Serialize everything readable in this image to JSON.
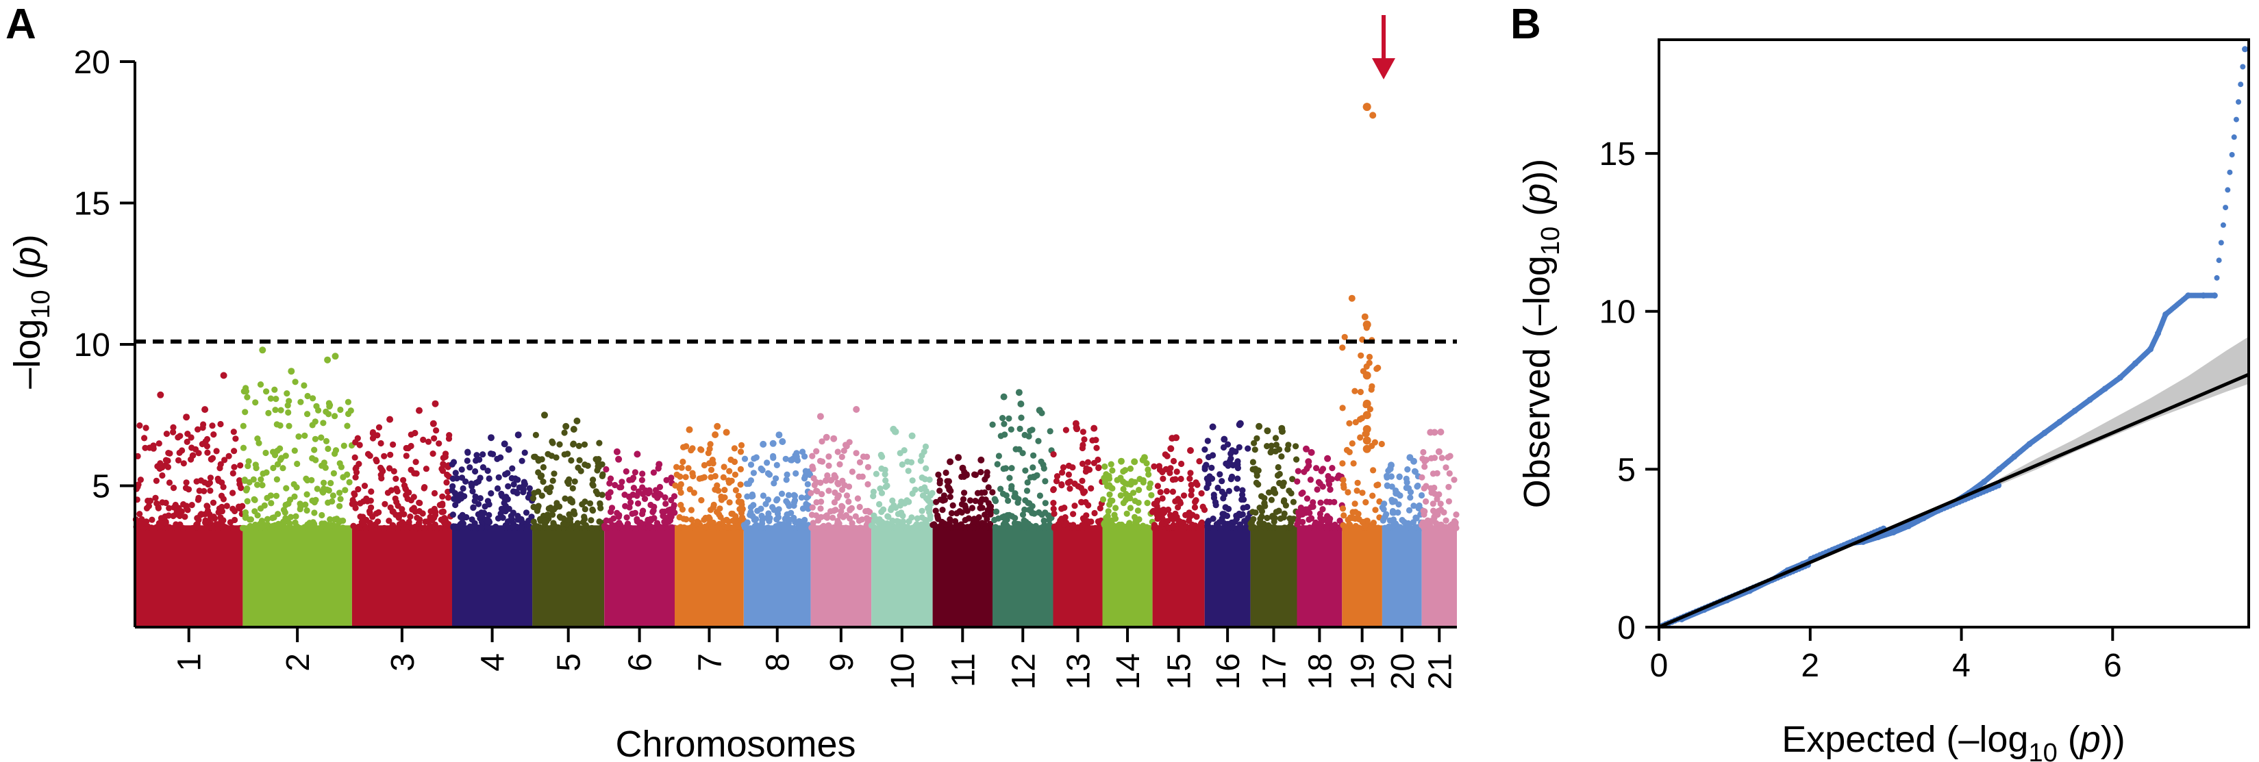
{
  "figure": {
    "panel_a_label": "A",
    "panel_b_label": "B"
  },
  "chart_data": [
    {
      "panel": "A",
      "type": "scatter",
      "subtype": "manhattan",
      "xlabel": "Chromosomes",
      "ylabel_pre": "–log",
      "ylabel_sub": "10",
      "ylabel_post": " (",
      "ylabel_var": "p",
      "ylabel_end": ")",
      "ylim": [
        0,
        20
      ],
      "yticks": [
        5,
        10,
        15,
        20
      ],
      "threshold": 10.1,
      "threshold_style": "dashed",
      "grid": false,
      "chromosomes": [
        {
          "label": "1",
          "size": 1.53,
          "color": "#b3122a",
          "peak": 8.9,
          "high": 7.2
        },
        {
          "label": "2",
          "size": 1.55,
          "color": "#86b832",
          "peak": 9.8,
          "high": 8.8
        },
        {
          "label": "3",
          "size": 1.42,
          "color": "#b3122a",
          "peak": 7.9,
          "high": 7.1
        },
        {
          "label": "4",
          "size": 1.14,
          "color": "#2b1a6e",
          "peak": 6.8,
          "high": 6.2
        },
        {
          "label": "5",
          "size": 1.02,
          "color": "#4b5116",
          "peak": 7.5,
          "high": 6.9
        },
        {
          "label": "6",
          "size": 1.0,
          "color": "#ad1459",
          "peak": 6.2,
          "high": 5.7
        },
        {
          "label": "7",
          "size": 0.98,
          "color": "#e07526",
          "peak": 7.1,
          "high": 6.5
        },
        {
          "label": "8",
          "size": 0.95,
          "color": "#6b96d4",
          "peak": 6.8,
          "high": 6.2
        },
        {
          "label": "9",
          "size": 0.86,
          "color": "#d88aab",
          "peak": 7.7,
          "high": 6.6
        },
        {
          "label": "10",
          "size": 0.87,
          "color": "#9bd0b8",
          "peak": 7.0,
          "high": 6.4
        },
        {
          "label": "11",
          "size": 0.85,
          "color": "#65001d",
          "peak": 6.0,
          "high": 5.5
        },
        {
          "label": "12",
          "size": 0.86,
          "color": "#3d7860",
          "peak": 8.3,
          "high": 7.6
        },
        {
          "label": "13",
          "size": 0.7,
          "color": "#b3122a",
          "peak": 7.2,
          "high": 7.0
        },
        {
          "label": "14",
          "size": 0.71,
          "color": "#86b832",
          "peak": 6.0,
          "high": 5.8
        },
        {
          "label": "15",
          "size": 0.74,
          "color": "#b3122a",
          "peak": 6.7,
          "high": 6.2
        },
        {
          "label": "16",
          "size": 0.65,
          "color": "#2b1a6e",
          "peak": 7.2,
          "high": 6.6
        },
        {
          "label": "17",
          "size": 0.66,
          "color": "#4b5116",
          "peak": 7.1,
          "high": 6.7
        },
        {
          "label": "18",
          "size": 0.64,
          "color": "#ad1459",
          "peak": 6.3,
          "high": 5.8
        },
        {
          "label": "19",
          "size": 0.57,
          "color": "#e07526",
          "peak": 18.4,
          "high": 10.7
        },
        {
          "label": "20",
          "size": 0.56,
          "color": "#6b96d4",
          "peak": 6.0,
          "high": 5.6
        },
        {
          "label": "21",
          "size": 0.5,
          "color": "#d88aab",
          "peak": 6.9,
          "high": 6.2
        }
      ],
      "highlight": {
        "chromosome": "19",
        "marker": "arrow",
        "color": "#c8102e",
        "points": [
          18.4,
          10.7,
          8.9,
          7.9,
          7.5,
          7.0,
          6.6,
          6.3
        ]
      }
    },
    {
      "panel": "B",
      "type": "scatter",
      "subtype": "qq-plot",
      "xlabel_pre": "Expected (–log",
      "xlabel_sub": "10",
      "xlabel_mid": " (",
      "xlabel_var": "p",
      "xlabel_end": "))",
      "ylabel_pre": "Observed (–log",
      "ylabel_sub": "10",
      "ylabel_mid": " (",
      "ylabel_var": "p",
      "ylabel_end": "))",
      "xlim": [
        0,
        7.8
      ],
      "ylim": [
        0,
        18.6
      ],
      "xticks": [
        0,
        2,
        4,
        6
      ],
      "yticks": [
        0,
        5,
        10,
        15
      ],
      "grid": false,
      "point_color": "#4a7cc7",
      "reference_line": {
        "from": [
          0,
          0
        ],
        "to": [
          7.8,
          8.0
        ],
        "color": "#000000"
      },
      "confidence_band": {
        "color": "#bdbdbd",
        "x": [
          4.5,
          5.0,
          5.5,
          6.0,
          6.5,
          7.0,
          7.5,
          7.8
        ],
        "upper": [
          4.7,
          5.35,
          5.95,
          6.6,
          7.25,
          7.95,
          8.75,
          9.2
        ],
        "lower": [
          4.5,
          5.0,
          5.55,
          6.05,
          6.55,
          7.0,
          7.45,
          7.7
        ]
      },
      "points_x": [
        0.3,
        0.6,
        0.9,
        1.2,
        1.5,
        1.7,
        1.9,
        2.1,
        2.3,
        2.5,
        2.7,
        2.9,
        3.1,
        3.3,
        3.5,
        3.7,
        3.9,
        4.1,
        4.3,
        4.5,
        4.7,
        4.9,
        5.1,
        5.3,
        5.5,
        5.7,
        5.9,
        6.1,
        6.3,
        6.5,
        6.6,
        6.7,
        7.0,
        7.2,
        7.35,
        7.75
      ],
      "points_y": [
        0.25,
        0.55,
        0.85,
        1.15,
        1.5,
        1.8,
        2.0,
        2.2,
        2.45,
        2.65,
        2.7,
        2.85,
        3.0,
        3.2,
        3.45,
        3.7,
        3.95,
        4.25,
        4.6,
        5.0,
        5.4,
        5.8,
        6.15,
        6.5,
        6.85,
        7.2,
        7.55,
        7.9,
        8.35,
        8.8,
        9.3,
        9.9,
        10.5,
        10.5,
        10.5,
        18.3
      ]
    }
  ]
}
